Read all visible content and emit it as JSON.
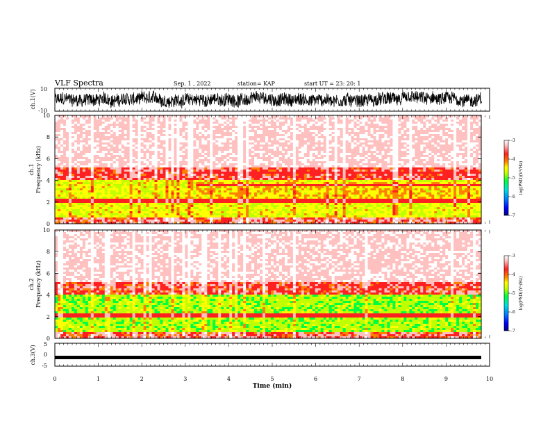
{
  "header": {
    "title": "VLF Spectra",
    "date": "Sep. 1  , 2022",
    "station": "station= KAP",
    "start": "start  UT  =   23: 20: 1"
  },
  "colors": {
    "spectrogram_scale": [
      "#000080",
      "#0000ff",
      "#0080ff",
      "#00e0e0",
      "#00ff40",
      "#c0ff00",
      "#ffff00",
      "#ff8000",
      "#ff2020",
      "#ffc0c0",
      "#ffffff"
    ]
  },
  "chart_data": [
    {
      "type": "line",
      "panel": "ch1-waveform",
      "ylabel": "ch.1(V)",
      "ylim": [
        -10,
        10
      ],
      "yticks": [
        "10",
        "-10"
      ],
      "xlim": [
        0,
        10
      ],
      "note_visible": "dense black noise trace spanning 0 to ~9.8 min"
    },
    {
      "type": "heatmap",
      "panel": "ch1-spectrogram",
      "title": "ch.1",
      "ylabel": "Frequency  (kHz)",
      "ylim": [
        0,
        10
      ],
      "yticks": [
        "0",
        "2",
        "4",
        "6",
        "8",
        "10"
      ],
      "xlim": [
        0,
        10
      ],
      "colorbar": {
        "label": "log(PSD)(V²/Hz)",
        "range": [
          -7,
          -3
        ],
        "ticks": [
          "-3",
          "-4",
          "-5",
          "-6",
          "-7"
        ]
      }
    },
    {
      "type": "heatmap",
      "panel": "ch2-spectrogram",
      "title": "ch.2",
      "ylabel": "Frequency  (kHz)",
      "ylim": [
        0,
        10
      ],
      "yticks": [
        "0",
        "2",
        "4",
        "6",
        "8",
        "10"
      ],
      "xlim": [
        0,
        10
      ],
      "colorbar": {
        "label": "log(PSD)(V²/Hz)",
        "range": [
          -7,
          -3
        ],
        "ticks": [
          "-3",
          "-4",
          "-5",
          "-6",
          "-7"
        ]
      }
    },
    {
      "type": "line",
      "panel": "ch3-waveform",
      "ylabel": "ch.3(V)",
      "ylim": [
        -5,
        5
      ],
      "yticks": [
        "5",
        "0",
        "-5"
      ],
      "xlim": [
        0,
        10
      ],
      "level": -1.2
    }
  ],
  "xaxis": {
    "label": "Time  (min)",
    "ticks": [
      "0",
      "1",
      "2",
      "3",
      "4",
      "5",
      "6",
      "7",
      "8",
      "9",
      "10"
    ]
  }
}
